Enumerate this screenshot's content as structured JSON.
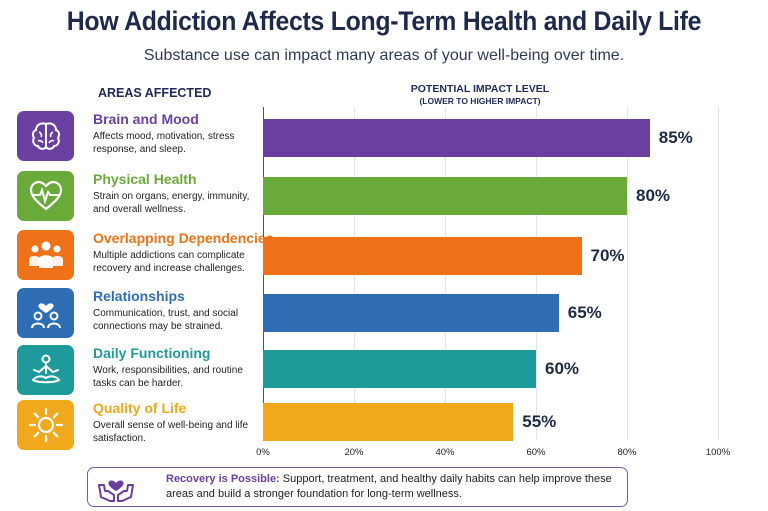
{
  "header": {
    "title": "How Addiction Affects Long-Term Health and Daily Life",
    "subtitle": "Substance use can impact many areas of your well-being over time."
  },
  "columns": {
    "areas_label": "AREAS AFFECTED",
    "impact_label": "POTENTIAL IMPACT LEVEL",
    "impact_sublabel": "(LOWER TO HIGHER IMPACT)"
  },
  "areas": [
    {
      "title": "Brain and Mood",
      "description": "Affects mood, motivation, stress response, and sleep.",
      "icon": "brain-icon",
      "color": "#6b3fa0",
      "value_label": "85%"
    },
    {
      "title": "Physical Health",
      "description": "Strain on organs, energy, immunity, and overall wellness.",
      "icon": "heartbeat-icon",
      "color": "#6aaa3a",
      "value_label": "80%"
    },
    {
      "title": "Overlapping Dependencies",
      "description": "Multiple addictions can complicate recovery and increase challenges.",
      "icon": "people-group-icon",
      "color": "#ee7218",
      "value_label": "70%"
    },
    {
      "title": "Relationships",
      "description": "Communication, trust, and social connections may be strained.",
      "icon": "relationship-icon",
      "color": "#2f6db5",
      "value_label": "65%"
    },
    {
      "title": "Daily Functioning",
      "description": "Work, responsibilities, and routine tasks can be harder.",
      "icon": "meditation-icon",
      "color": "#1f9a9a",
      "value_label": "60%"
    },
    {
      "title": "Quality of Life",
      "description": "Overall sense of well-being and life satisfaction.",
      "icon": "sun-icon",
      "color": "#f0a81c",
      "value_label": "55%"
    }
  ],
  "chart_data": {
    "type": "bar",
    "orientation": "horizontal",
    "categories": [
      "Brain and Mood",
      "Physical Health",
      "Overlapping Dependencies",
      "Relationships",
      "Daily Functioning",
      "Quality of Life"
    ],
    "values": [
      85,
      80,
      70,
      65,
      60,
      55
    ],
    "colors": [
      "#6b3fa0",
      "#6aaa3a",
      "#ee7218",
      "#2f6db5",
      "#1f9a9a",
      "#f0a81c"
    ],
    "xlim": [
      0,
      100
    ],
    "ticks": [
      "0%",
      "20%",
      "40%",
      "60%",
      "80%",
      "100%"
    ],
    "grid": true
  },
  "footer": {
    "bold": "Recovery is Possible:",
    "text": "Support, treatment, and healthy daily habits can help improve these areas and build a stronger foundation for long-term wellness.",
    "icon": "hands-heart-icon",
    "color": "#6b3fa0"
  }
}
